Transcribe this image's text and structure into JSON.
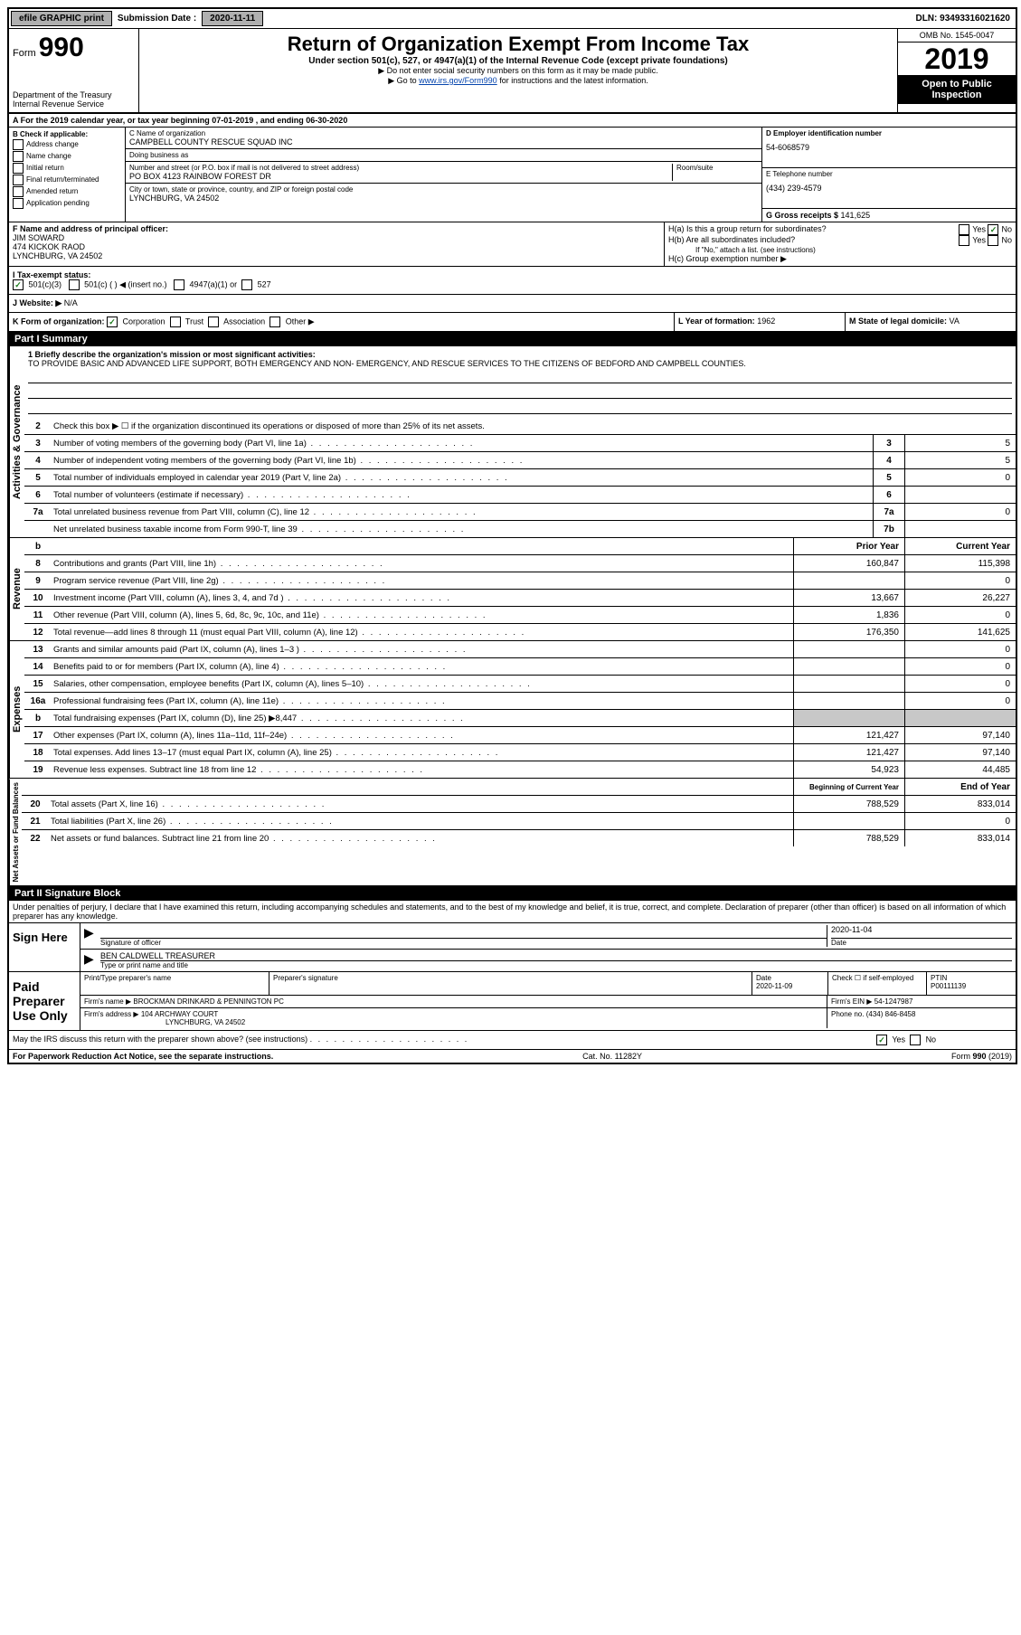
{
  "topbar": {
    "efile": "efile GRAPHIC print",
    "sub_label": "Submission Date :",
    "sub_date": "2020-11-11",
    "dln": "DLN: 93493316021620"
  },
  "header": {
    "form": "Form",
    "num": "990",
    "dept": "Department of the Treasury\nInternal Revenue Service",
    "title": "Return of Organization Exempt From Income Tax",
    "subtitle": "Under section 501(c), 527, or 4947(a)(1) of the Internal Revenue Code (except private foundations)",
    "arrow1": "▶ Do not enter social security numbers on this form as it may be made public.",
    "arrow2_pre": "▶ Go to ",
    "arrow2_link": "www.irs.gov/Form990",
    "arrow2_post": " for instructions and the latest information.",
    "omb": "OMB No. 1545-0047",
    "year": "2019",
    "open": "Open to Public Inspection"
  },
  "section_a": "A For the 2019 calendar year, or tax year beginning 07-01-2019    , and ending 06-30-2020",
  "section_b": {
    "label": "B Check if applicable:",
    "items": [
      "Address change",
      "Name change",
      "Initial return",
      "Final return/terminated",
      "Amended return",
      "Application pending"
    ]
  },
  "section_c": {
    "name_label": "C Name of organization",
    "name": "CAMPBELL COUNTY RESCUE SQUAD INC",
    "dba_label": "Doing business as",
    "dba": "",
    "addr_label": "Number and street (or P.O. box if mail is not delivered to street address)",
    "room_label": "Room/suite",
    "addr": "PO BOX 4123 RAINBOW FOREST DR",
    "city_label": "City or town, state or province, country, and ZIP or foreign postal code",
    "city": "LYNCHBURG, VA  24502"
  },
  "section_d": {
    "label": "D Employer identification number",
    "ein": "54-6068579"
  },
  "section_e": {
    "label": "E Telephone number",
    "phone": "(434) 239-4579"
  },
  "section_g": {
    "label": "G Gross receipts $ ",
    "val": "141,625"
  },
  "section_f": {
    "label": "F  Name and address of principal officer:",
    "name": "JIM SOWARD",
    "addr1": "474 KICKOK RAOD",
    "addr2": "LYNCHBURG, VA  24502"
  },
  "section_h": {
    "ha": "H(a)  Is this a group return for subordinates?",
    "hb": "H(b)  Are all subordinates included?",
    "hb_note": "If \"No,\" attach a list. (see instructions)",
    "hc": "H(c)  Group exemption number ▶",
    "yes": "Yes",
    "no": "No"
  },
  "tax_exempt": {
    "label": "I   Tax-exempt status:",
    "c3": "501(c)(3)",
    "c": "501(c) (   ) ◀ (insert no.)",
    "a1": "4947(a)(1) or",
    "s527": "527"
  },
  "website": {
    "label": "J   Website: ▶",
    "val": "N/A"
  },
  "section_k": {
    "label": "K Form of organization:",
    "corp": "Corporation",
    "trust": "Trust",
    "assoc": "Association",
    "other": "Other ▶"
  },
  "section_l": {
    "label": "L Year of formation:",
    "val": "1962"
  },
  "section_m": {
    "label": "M State of legal domicile:",
    "val": "VA"
  },
  "part1": {
    "header": "Part I      Summary",
    "q1": "1  Briefly describe the organization's mission or most significant activities:",
    "mission": "TO PROVIDE BASIC AND ADVANCED LIFE SUPPORT, BOTH EMERGENCY AND NON- EMERGENCY, AND RESCUE SERVICES TO THE CITIZENS OF BEDFORD AND CAMPBELL COUNTIES.",
    "q2": "Check this box ▶ ☐  if the organization discontinued its operations or disposed of more than 25% of its net assets.",
    "vlabel_ag": "Activities & Governance",
    "vlabel_rev": "Revenue",
    "vlabel_exp": "Expenses",
    "vlabel_na": "Net Assets or Fund Balances",
    "lines_ag": [
      {
        "n": "3",
        "t": "Number of voting members of the governing body (Part VI, line 1a)",
        "b": "3",
        "v": "5"
      },
      {
        "n": "4",
        "t": "Number of independent voting members of the governing body (Part VI, line 1b)",
        "b": "4",
        "v": "5"
      },
      {
        "n": "5",
        "t": "Total number of individuals employed in calendar year 2019 (Part V, line 2a)",
        "b": "5",
        "v": "0"
      },
      {
        "n": "6",
        "t": "Total number of volunteers (estimate if necessary)",
        "b": "6",
        "v": ""
      },
      {
        "n": "7a",
        "t": "Total unrelated business revenue from Part VIII, column (C), line 12",
        "b": "7a",
        "v": "0"
      },
      {
        "n": "",
        "t": "Net unrelated business taxable income from Form 990-T, line 39",
        "b": "7b",
        "v": ""
      }
    ],
    "col_prior": "Prior Year",
    "col_current": "Current Year",
    "lines_rev": [
      {
        "n": "8",
        "t": "Contributions and grants (Part VIII, line 1h)",
        "p": "160,847",
        "c": "115,398"
      },
      {
        "n": "9",
        "t": "Program service revenue (Part VIII, line 2g)",
        "p": "",
        "c": "0"
      },
      {
        "n": "10",
        "t": "Investment income (Part VIII, column (A), lines 3, 4, and 7d )",
        "p": "13,667",
        "c": "26,227"
      },
      {
        "n": "11",
        "t": "Other revenue (Part VIII, column (A), lines 5, 6d, 8c, 9c, 10c, and 11e)",
        "p": "1,836",
        "c": "0"
      },
      {
        "n": "12",
        "t": "Total revenue—add lines 8 through 11 (must equal Part VIII, column (A), line 12)",
        "p": "176,350",
        "c": "141,625"
      }
    ],
    "lines_exp": [
      {
        "n": "13",
        "t": "Grants and similar amounts paid (Part IX, column (A), lines 1–3 )",
        "p": "",
        "c": "0"
      },
      {
        "n": "14",
        "t": "Benefits paid to or for members (Part IX, column (A), line 4)",
        "p": "",
        "c": "0"
      },
      {
        "n": "15",
        "t": "Salaries, other compensation, employee benefits (Part IX, column (A), lines 5–10)",
        "p": "",
        "c": "0"
      },
      {
        "n": "16a",
        "t": "Professional fundraising fees (Part IX, column (A), line 11e)",
        "p": "",
        "c": "0"
      },
      {
        "n": "b",
        "t": "Total fundraising expenses (Part IX, column (D), line 25) ▶8,447",
        "p": "shade",
        "c": "shade"
      },
      {
        "n": "17",
        "t": "Other expenses (Part IX, column (A), lines 11a–11d, 11f–24e)",
        "p": "121,427",
        "c": "97,140"
      },
      {
        "n": "18",
        "t": "Total expenses. Add lines 13–17 (must equal Part IX, column (A), line 25)",
        "p": "121,427",
        "c": "97,140"
      },
      {
        "n": "19",
        "t": "Revenue less expenses. Subtract line 18 from line 12",
        "p": "54,923",
        "c": "44,485"
      }
    ],
    "col_begin": "Beginning of Current Year",
    "col_end": "End of Year",
    "lines_na": [
      {
        "n": "20",
        "t": "Total assets (Part X, line 16)",
        "p": "788,529",
        "c": "833,014"
      },
      {
        "n": "21",
        "t": "Total liabilities (Part X, line 26)",
        "p": "",
        "c": "0"
      },
      {
        "n": "22",
        "t": "Net assets or fund balances. Subtract line 21 from line 20",
        "p": "788,529",
        "c": "833,014"
      }
    ]
  },
  "part2": {
    "header": "Part II     Signature Block",
    "decl": "Under penalties of perjury, I declare that I have examined this return, including accompanying schedules and statements, and to the best of my knowledge and belief, it is true, correct, and complete. Declaration of preparer (other than officer) is based on all information of which preparer has any knowledge.",
    "sign_here": "Sign Here",
    "sig_officer": "Signature of officer",
    "sig_date": "2020-11-04",
    "date_label": "Date",
    "officer_name": "BEN CALDWELL  TREASURER",
    "type_label": "Type or print name and title",
    "paid": "Paid Preparer Use Only",
    "prep_name_label": "Print/Type preparer's name",
    "prep_sig_label": "Preparer's signature",
    "prep_date": "2020-11-09",
    "prep_check": "Check ☐ if self-employed",
    "ptin_label": "PTIN",
    "ptin": "P00111139",
    "firm_label": "Firm's name     ▶",
    "firm": "BROCKMAN DRINKARD & PENNINGTON PC",
    "firm_ein_label": "Firm's EIN ▶",
    "firm_ein": "54-1247987",
    "firm_addr_label": "Firm's address ▶",
    "firm_addr1": "104 ARCHWAY COURT",
    "firm_addr2": "LYNCHBURG, VA  24502",
    "phone_label": "Phone no.",
    "phone": "(434) 846-8458",
    "discuss": "May the IRS discuss this return with the preparer shown above? (see instructions)",
    "yes": "Yes",
    "no": "No"
  },
  "footer": {
    "left": "For Paperwork Reduction Act Notice, see the separate instructions.",
    "mid": "Cat. No. 11282Y",
    "right": "Form 990 (2019)"
  }
}
